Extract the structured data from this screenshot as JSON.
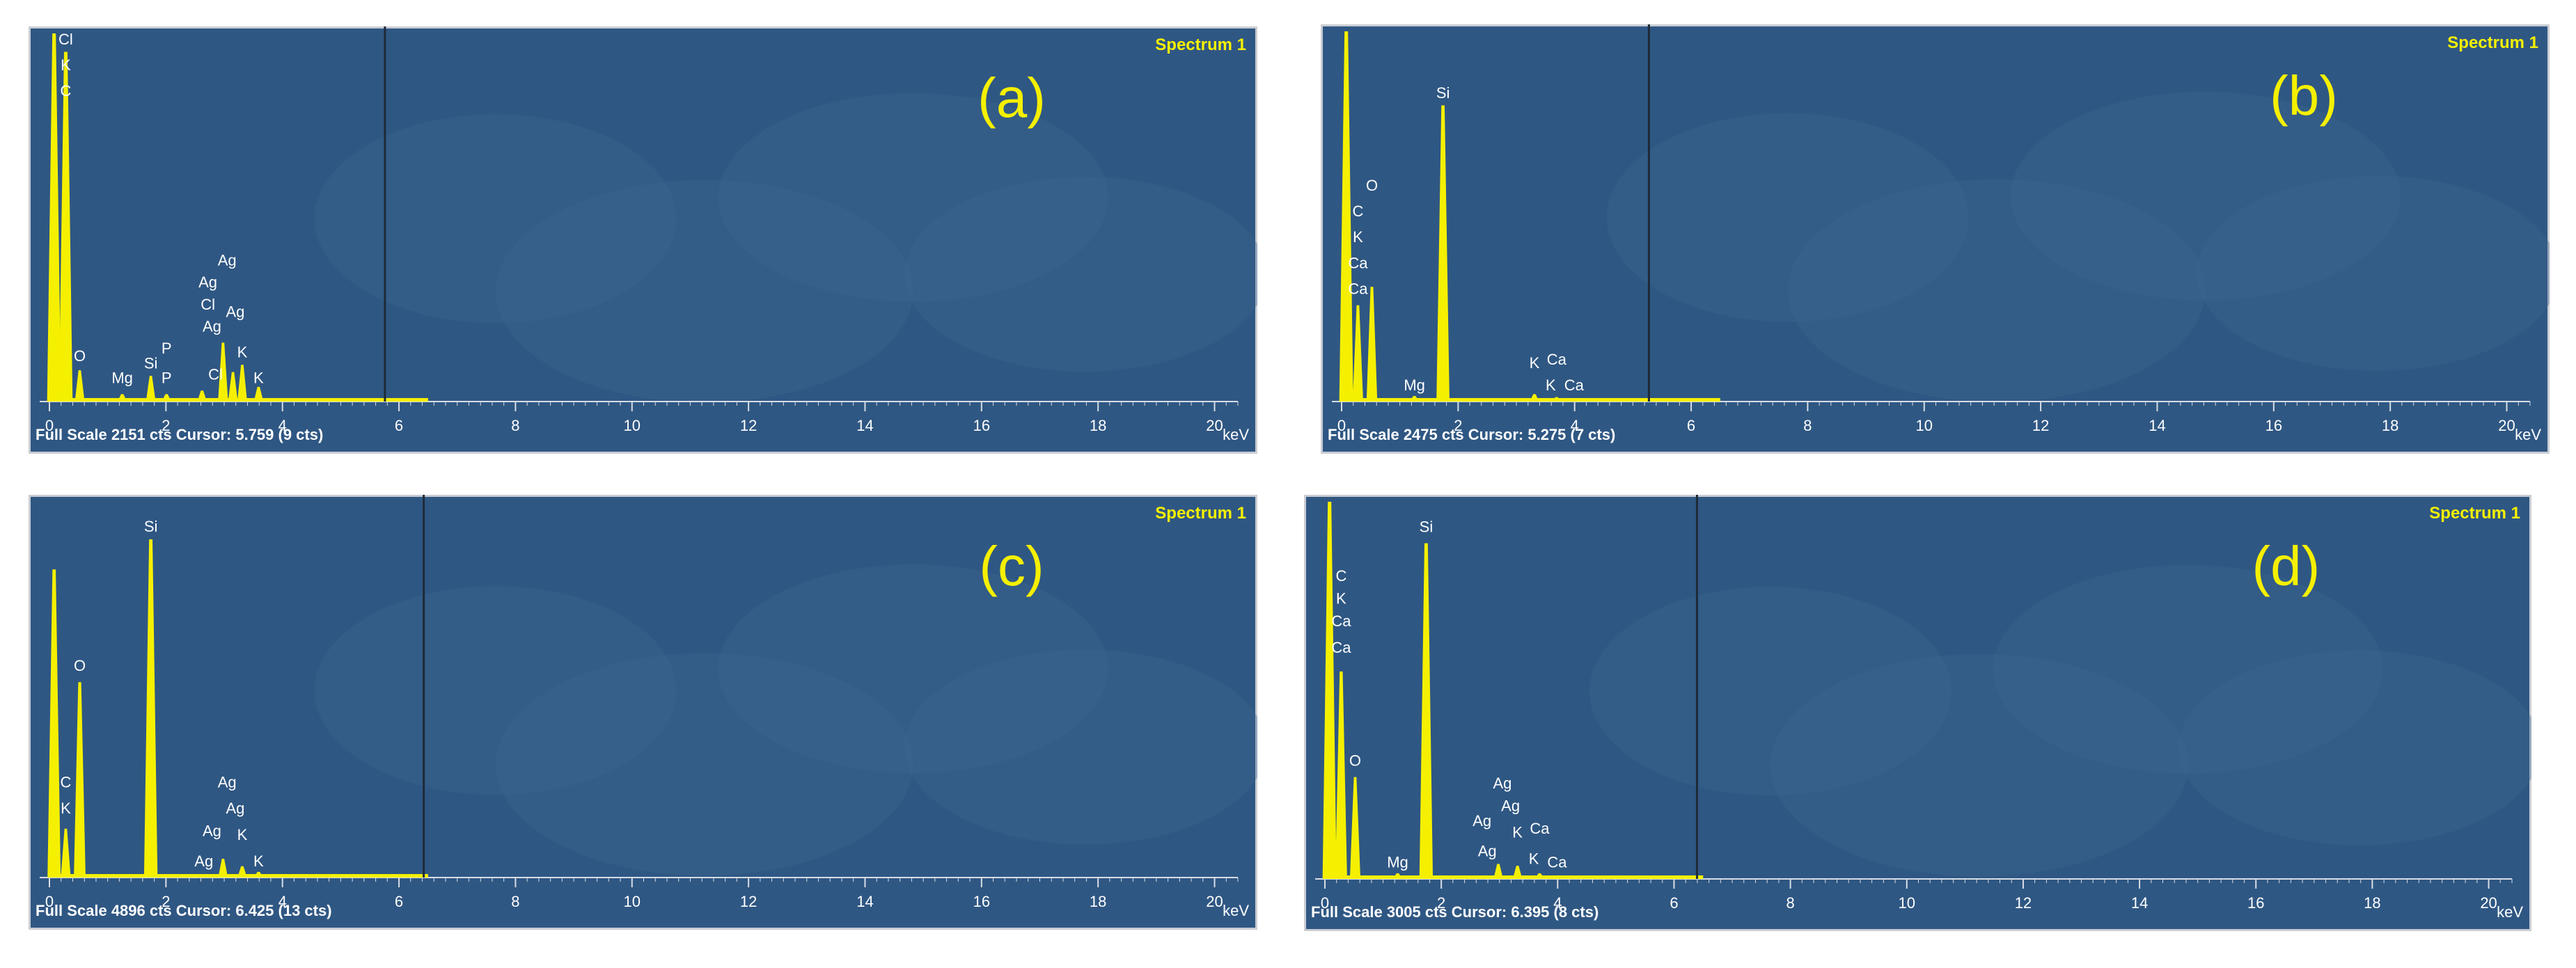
{
  "figure": {
    "panel_bg": "#2f5783",
    "peak_color": "#f5f000",
    "label_color": "#f5f000",
    "text_color": "#ffffff"
  },
  "chart_data": [
    {
      "type": "line",
      "panel_label": "(a)",
      "spectrum_label": "Spectrum 1",
      "status": "Full Scale 2151 cts Cursor: 5.759  (9 cts)",
      "xlabel": "keV",
      "xlim": [
        0,
        20.4
      ],
      "x_ticks": [
        "0",
        "2",
        "4",
        "6",
        "8",
        "10",
        "12",
        "14",
        "16",
        "18",
        "20"
      ],
      "cursor_kev": 5.759,
      "peaks": [
        {
          "x": 0.08,
          "y": 1.0
        },
        {
          "x": 0.28,
          "y": 0.95
        },
        {
          "x": 0.52,
          "y": 0.085
        },
        {
          "x": 1.25,
          "y": 0.02
        },
        {
          "x": 1.74,
          "y": 0.07
        },
        {
          "x": 2.01,
          "y": 0.02
        },
        {
          "x": 2.62,
          "y": 0.03
        },
        {
          "x": 2.98,
          "y": 0.16
        },
        {
          "x": 3.15,
          "y": 0.08
        },
        {
          "x": 3.31,
          "y": 0.1
        },
        {
          "x": 3.59,
          "y": 0.04
        }
      ],
      "element_labels": [
        {
          "text": "Cl",
          "x": 0.28,
          "y": 0.97
        },
        {
          "text": "K",
          "x": 0.28,
          "y": 0.9
        },
        {
          "text": "C",
          "x": 0.28,
          "y": 0.83
        },
        {
          "text": "O",
          "x": 0.52,
          "y": 0.11
        },
        {
          "text": "Mg",
          "x": 1.25,
          "y": 0.05
        },
        {
          "text": "Si",
          "x": 1.74,
          "y": 0.09
        },
        {
          "text": "P",
          "x": 2.01,
          "y": 0.13
        },
        {
          "text": "P",
          "x": 2.01,
          "y": 0.05
        },
        {
          "text": "Cl",
          "x": 2.85,
          "y": 0.06
        },
        {
          "text": "Ag",
          "x": 3.05,
          "y": 0.37
        },
        {
          "text": "Ag",
          "x": 2.72,
          "y": 0.31
        },
        {
          "text": "Cl",
          "x": 2.72,
          "y": 0.25
        },
        {
          "text": "Ag",
          "x": 2.79,
          "y": 0.19
        },
        {
          "text": "Ag",
          "x": 3.19,
          "y": 0.23
        },
        {
          "text": "K",
          "x": 3.31,
          "y": 0.12
        },
        {
          "text": "K",
          "x": 3.59,
          "y": 0.05
        }
      ]
    },
    {
      "type": "line",
      "panel_label": "(b)",
      "spectrum_label": "Spectrum 1",
      "status": "Full Scale 2475 cts Cursor: 5.275  (7 cts)",
      "xlabel": "keV",
      "xlim": [
        0,
        20.4
      ],
      "x_ticks": [
        "0",
        "2",
        "4",
        "6",
        "8",
        "10",
        "12",
        "14",
        "16",
        "18",
        "20"
      ],
      "cursor_kev": 5.275,
      "peaks": [
        {
          "x": 0.08,
          "y": 1.0
        },
        {
          "x": 0.28,
          "y": 0.26
        },
        {
          "x": 0.52,
          "y": 0.31
        },
        {
          "x": 1.25,
          "y": 0.015
        },
        {
          "x": 1.74,
          "y": 0.8
        },
        {
          "x": 3.31,
          "y": 0.02
        },
        {
          "x": 3.69,
          "y": 0.012
        }
      ],
      "element_labels": [
        {
          "text": "Si",
          "x": 1.74,
          "y": 0.82
        },
        {
          "text": "O",
          "x": 0.52,
          "y": 0.57
        },
        {
          "text": "C",
          "x": 0.28,
          "y": 0.5
        },
        {
          "text": "K",
          "x": 0.28,
          "y": 0.43
        },
        {
          "text": "Ca",
          "x": 0.28,
          "y": 0.36
        },
        {
          "text": "Ca",
          "x": 0.28,
          "y": 0.29
        },
        {
          "text": "Mg",
          "x": 1.25,
          "y": 0.03
        },
        {
          "text": "K",
          "x": 3.31,
          "y": 0.09
        },
        {
          "text": "Ca",
          "x": 3.69,
          "y": 0.1
        },
        {
          "text": "K",
          "x": 3.59,
          "y": 0.03
        },
        {
          "text": "Ca",
          "x": 3.99,
          "y": 0.03
        }
      ]
    },
    {
      "type": "line",
      "panel_label": "(c)",
      "spectrum_label": "Spectrum 1",
      "status": "Full Scale 4896 cts Cursor: 6.425  (13 cts)",
      "xlabel": "keV",
      "xlim": [
        0,
        20.4
      ],
      "x_ticks": [
        "0",
        "2",
        "4",
        "6",
        "8",
        "10",
        "12",
        "14",
        "16",
        "18",
        "20"
      ],
      "cursor_kev": 6.425,
      "peaks": [
        {
          "x": 0.08,
          "y": 0.82
        },
        {
          "x": 0.28,
          "y": 0.13
        },
        {
          "x": 0.52,
          "y": 0.52
        },
        {
          "x": 1.74,
          "y": 0.9
        },
        {
          "x": 2.98,
          "y": 0.05
        },
        {
          "x": 3.31,
          "y": 0.03
        },
        {
          "x": 3.59,
          "y": 0.015
        }
      ],
      "element_labels": [
        {
          "text": "Si",
          "x": 1.74,
          "y": 0.92
        },
        {
          "text": "O",
          "x": 0.52,
          "y": 0.55
        },
        {
          "text": "C",
          "x": 0.28,
          "y": 0.24
        },
        {
          "text": "K",
          "x": 0.28,
          "y": 0.17
        },
        {
          "text": "Ag",
          "x": 3.05,
          "y": 0.24
        },
        {
          "text": "Ag",
          "x": 3.19,
          "y": 0.17
        },
        {
          "text": "Ag",
          "x": 2.79,
          "y": 0.11
        },
        {
          "text": "K",
          "x": 3.31,
          "y": 0.1
        },
        {
          "text": "Ag",
          "x": 2.65,
          "y": 0.03
        },
        {
          "text": "K",
          "x": 3.59,
          "y": 0.03
        }
      ]
    },
    {
      "type": "line",
      "panel_label": "(d)",
      "spectrum_label": "Spectrum 1",
      "status": "Full Scale 3005 cts Cursor: 6.395  (8 cts)",
      "xlabel": "keV",
      "xlim": [
        0,
        20.4
      ],
      "x_ticks": [
        "0",
        "2",
        "4",
        "6",
        "8",
        "10",
        "12",
        "14",
        "16",
        "18",
        "20"
      ],
      "cursor_kev": 6.395,
      "peaks": [
        {
          "x": 0.08,
          "y": 1.0
        },
        {
          "x": 0.28,
          "y": 0.55
        },
        {
          "x": 0.52,
          "y": 0.27
        },
        {
          "x": 1.25,
          "y": 0.015
        },
        {
          "x": 1.74,
          "y": 0.89
        },
        {
          "x": 2.98,
          "y": 0.04
        },
        {
          "x": 3.31,
          "y": 0.035
        },
        {
          "x": 3.69,
          "y": 0.015
        }
      ],
      "element_labels": [
        {
          "text": "Si",
          "x": 1.74,
          "y": 0.92
        },
        {
          "text": "C",
          "x": 0.28,
          "y": 0.79
        },
        {
          "text": "K",
          "x": 0.28,
          "y": 0.73
        },
        {
          "text": "Ca",
          "x": 0.28,
          "y": 0.67
        },
        {
          "text": "Ca",
          "x": 0.28,
          "y": 0.6
        },
        {
          "text": "O",
          "x": 0.52,
          "y": 0.3
        },
        {
          "text": "Mg",
          "x": 1.25,
          "y": 0.03
        },
        {
          "text": "Ag",
          "x": 3.05,
          "y": 0.24
        },
        {
          "text": "Ag",
          "x": 2.7,
          "y": 0.14
        },
        {
          "text": "Ag",
          "x": 3.19,
          "y": 0.18
        },
        {
          "text": "K",
          "x": 3.31,
          "y": 0.11
        },
        {
          "text": "Ca",
          "x": 3.69,
          "y": 0.12
        },
        {
          "text": "Ag",
          "x": 2.79,
          "y": 0.06
        },
        {
          "text": "K",
          "x": 3.59,
          "y": 0.04
        },
        {
          "text": "Ca",
          "x": 3.99,
          "y": 0.03
        }
      ]
    }
  ]
}
